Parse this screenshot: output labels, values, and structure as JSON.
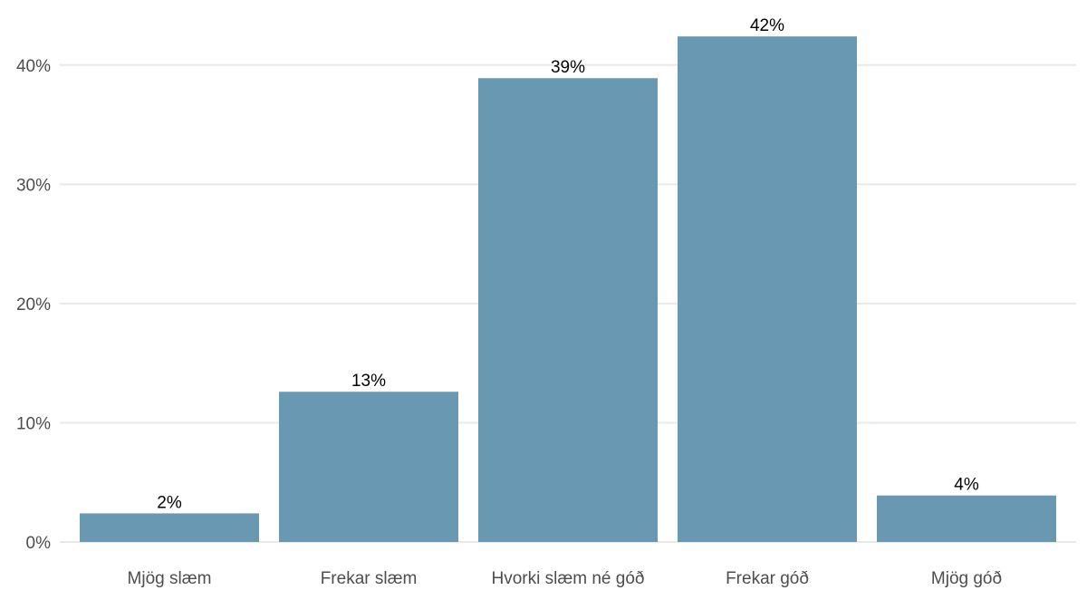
{
  "chart_data": {
    "type": "bar",
    "categories": [
      "Mjög slæm",
      "Frekar slæm",
      "Hvorki slæm né góð",
      "Frekar góð",
      "Mjög góð"
    ],
    "values": [
      2.4,
      12.6,
      38.9,
      42.4,
      3.9
    ],
    "data_labels": [
      "2%",
      "13%",
      "39%",
      "42%",
      "4%"
    ],
    "ylim": [
      0,
      45
    ],
    "yticks": [
      0,
      10,
      20,
      30,
      40
    ],
    "ytick_labels": [
      "0%",
      "10%",
      "20%",
      "30%",
      "40%"
    ],
    "grid": true,
    "bar_color": "#6998b2",
    "title": "",
    "xlabel": "",
    "ylabel": ""
  }
}
